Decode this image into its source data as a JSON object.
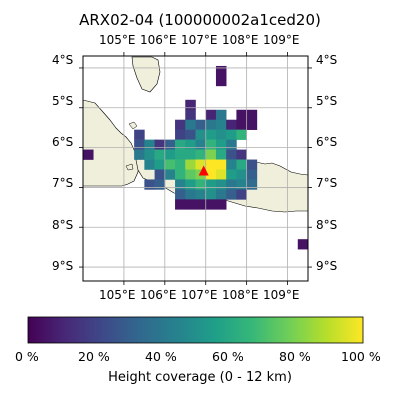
{
  "title": "ARX02-04 (100000002a1ced20)",
  "lon_ticks": [
    "105°E",
    "106°E",
    "107°E",
    "108°E",
    "109°E"
  ],
  "lat_ticks": [
    "4°S",
    "5°S",
    "6°S",
    "7°S",
    "8°S",
    "9°S"
  ],
  "map": {
    "lon_range": [
      104.0,
      109.5
    ],
    "lat_range": [
      -9.35,
      -3.7
    ],
    "grid_step_deg": 0.25,
    "land_color": "#efefdb",
    "ocean_color": "#ffffff",
    "grid": true,
    "marker": {
      "lon": 106.95,
      "lat": -6.6,
      "symbol": "triangle",
      "color": "#ff0000"
    }
  },
  "coverage_cells": [
    {
      "lon": 107.25,
      "lat": -3.95,
      "v": 0.05
    },
    {
      "lon": 107.25,
      "lat": -4.2,
      "v": 0.05
    },
    {
      "lon": 106.5,
      "lat": -4.8,
      "v": 0.1
    },
    {
      "lon": 106.5,
      "lat": -5.05,
      "v": 0.15
    },
    {
      "lon": 107.0,
      "lat": -5.05,
      "v": 0.1
    },
    {
      "lon": 107.25,
      "lat": -5.05,
      "v": 0.4
    },
    {
      "lon": 107.75,
      "lat": -5.05,
      "v": 0.05
    },
    {
      "lon": 108.0,
      "lat": -5.05,
      "v": 0.05
    },
    {
      "lon": 106.25,
      "lat": -5.3,
      "v": 0.15
    },
    {
      "lon": 106.5,
      "lat": -5.3,
      "v": 0.4
    },
    {
      "lon": 106.75,
      "lat": -5.3,
      "v": 0.3
    },
    {
      "lon": 107.0,
      "lat": -5.3,
      "v": 0.4
    },
    {
      "lon": 107.25,
      "lat": -5.3,
      "v": 0.45
    },
    {
      "lon": 107.5,
      "lat": -5.3,
      "v": 0.1
    },
    {
      "lon": 107.75,
      "lat": -5.3,
      "v": 0.05
    },
    {
      "lon": 108.0,
      "lat": -5.3,
      "v": 0.05
    },
    {
      "lon": 105.25,
      "lat": -5.55,
      "v": 0.2
    },
    {
      "lon": 106.25,
      "lat": -5.55,
      "v": 0.2
    },
    {
      "lon": 106.5,
      "lat": -5.55,
      "v": 0.25
    },
    {
      "lon": 106.75,
      "lat": -5.55,
      "v": 0.5
    },
    {
      "lon": 107.0,
      "lat": -5.55,
      "v": 0.55
    },
    {
      "lon": 107.25,
      "lat": -5.55,
      "v": 0.5
    },
    {
      "lon": 107.5,
      "lat": -5.55,
      "v": 0.55
    },
    {
      "lon": 107.75,
      "lat": -5.55,
      "v": 0.65
    },
    {
      "lon": 105.25,
      "lat": -5.8,
      "v": 0.25
    },
    {
      "lon": 105.5,
      "lat": -5.8,
      "v": 0.45
    },
    {
      "lon": 105.75,
      "lat": -5.8,
      "v": 0.15
    },
    {
      "lon": 106.0,
      "lat": -5.8,
      "v": 0.3
    },
    {
      "lon": 106.25,
      "lat": -5.8,
      "v": 0.6
    },
    {
      "lon": 106.5,
      "lat": -5.8,
      "v": 0.55
    },
    {
      "lon": 106.75,
      "lat": -5.8,
      "v": 0.45
    },
    {
      "lon": 107.0,
      "lat": -5.8,
      "v": 0.65
    },
    {
      "lon": 107.25,
      "lat": -5.8,
      "v": 0.55
    },
    {
      "lon": 107.5,
      "lat": -5.8,
      "v": 0.4
    },
    {
      "lon": 104.0,
      "lat": -6.05,
      "v": 0.05
    },
    {
      "lon": 105.25,
      "lat": -6.05,
      "v": 0.4
    },
    {
      "lon": 105.5,
      "lat": -6.05,
      "v": 0.5
    },
    {
      "lon": 105.75,
      "lat": -6.05,
      "v": 0.6
    },
    {
      "lon": 106.0,
      "lat": -6.05,
      "v": 0.55
    },
    {
      "lon": 106.25,
      "lat": -6.05,
      "v": 0.6
    },
    {
      "lon": 106.5,
      "lat": -6.05,
      "v": 0.6
    },
    {
      "lon": 106.75,
      "lat": -6.05,
      "v": 0.65
    },
    {
      "lon": 107.0,
      "lat": -6.05,
      "v": 0.8
    },
    {
      "lon": 107.25,
      "lat": -6.05,
      "v": 0.6
    },
    {
      "lon": 107.5,
      "lat": -6.05,
      "v": 0.25
    },
    {
      "lon": 107.75,
      "lat": -6.05,
      "v": 0.15
    },
    {
      "lon": 105.5,
      "lat": -6.3,
      "v": 0.45
    },
    {
      "lon": 105.75,
      "lat": -6.3,
      "v": 0.55
    },
    {
      "lon": 106.0,
      "lat": -6.3,
      "v": 0.7
    },
    {
      "lon": 106.25,
      "lat": -6.3,
      "v": 0.65
    },
    {
      "lon": 106.5,
      "lat": -6.3,
      "v": 0.85
    },
    {
      "lon": 106.75,
      "lat": -6.3,
      "v": 0.95
    },
    {
      "lon": 107.0,
      "lat": -6.3,
      "v": 1.0
    },
    {
      "lon": 107.25,
      "lat": -6.3,
      "v": 1.0
    },
    {
      "lon": 107.5,
      "lat": -6.3,
      "v": 0.45
    },
    {
      "lon": 107.75,
      "lat": -6.3,
      "v": 0.6
    },
    {
      "lon": 108.0,
      "lat": -6.3,
      "v": 0.25
    },
    {
      "lon": 105.75,
      "lat": -6.55,
      "v": 0.25
    },
    {
      "lon": 106.0,
      "lat": -6.55,
      "v": 0.45
    },
    {
      "lon": 106.25,
      "lat": -6.55,
      "v": 0.65
    },
    {
      "lon": 106.5,
      "lat": -6.55,
      "v": 0.75
    },
    {
      "lon": 106.75,
      "lat": -6.55,
      "v": 0.8
    },
    {
      "lon": 107.0,
      "lat": -6.55,
      "v": 1.0
    },
    {
      "lon": 107.25,
      "lat": -6.55,
      "v": 0.95
    },
    {
      "lon": 107.5,
      "lat": -6.55,
      "v": 0.55
    },
    {
      "lon": 107.75,
      "lat": -6.55,
      "v": 0.5
    },
    {
      "lon": 108.0,
      "lat": -6.55,
      "v": 0.3
    },
    {
      "lon": 105.5,
      "lat": -6.8,
      "v": 0.25
    },
    {
      "lon": 105.75,
      "lat": -6.8,
      "v": 0.3
    },
    {
      "lon": 106.25,
      "lat": -6.8,
      "v": 0.45
    },
    {
      "lon": 106.5,
      "lat": -6.8,
      "v": 0.55
    },
    {
      "lon": 106.75,
      "lat": -6.8,
      "v": 0.65
    },
    {
      "lon": 107.0,
      "lat": -6.8,
      "v": 0.55
    },
    {
      "lon": 107.25,
      "lat": -6.8,
      "v": 0.5
    },
    {
      "lon": 107.5,
      "lat": -6.8,
      "v": 0.4
    },
    {
      "lon": 107.75,
      "lat": -6.8,
      "v": 0.45
    },
    {
      "lon": 108.0,
      "lat": -6.8,
      "v": 0.35
    },
    {
      "lon": 106.25,
      "lat": -7.05,
      "v": 0.3
    },
    {
      "lon": 106.5,
      "lat": -7.05,
      "v": 0.4
    },
    {
      "lon": 106.75,
      "lat": -7.05,
      "v": 0.45
    },
    {
      "lon": 107.0,
      "lat": -7.05,
      "v": 0.5
    },
    {
      "lon": 107.25,
      "lat": -7.05,
      "v": 0.4
    },
    {
      "lon": 107.5,
      "lat": -7.05,
      "v": 0.3
    },
    {
      "lon": 107.75,
      "lat": -7.05,
      "v": 0.2
    },
    {
      "lon": 106.25,
      "lat": -7.3,
      "v": 0.05
    },
    {
      "lon": 106.5,
      "lat": -7.3,
      "v": 0.05
    },
    {
      "lon": 106.75,
      "lat": -7.3,
      "v": 0.05
    },
    {
      "lon": 107.0,
      "lat": -7.3,
      "v": 0.05
    },
    {
      "lon": 107.25,
      "lat": -7.3,
      "v": 0.05
    },
    {
      "lon": 109.25,
      "lat": -8.3,
      "v": 0.05
    }
  ],
  "colorbar": {
    "label": "Height coverage (0 - 12 km)",
    "tick_labels": [
      "0 %",
      "20 %",
      "40 %",
      "60 %",
      "80 %",
      "100 %"
    ],
    "tick_values": [
      0,
      0.2,
      0.4,
      0.6,
      0.8,
      1.0
    ],
    "colormap": [
      "#440154",
      "#482878",
      "#3e4989",
      "#31688e",
      "#26828e",
      "#1f9e89",
      "#35b779",
      "#6ece58",
      "#b5de2b",
      "#fde725"
    ]
  }
}
